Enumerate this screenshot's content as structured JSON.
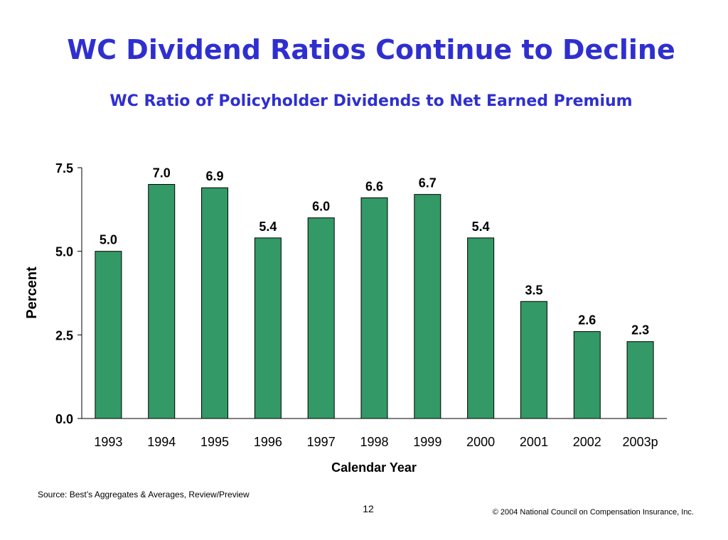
{
  "header": {
    "title": "WC Dividend Ratios Continue to Decline",
    "subtitle": "WC Ratio of Policyholder Dividends to Net Earned Premium"
  },
  "chart_data": {
    "type": "bar",
    "categories": [
      "1993",
      "1994",
      "1995",
      "1996",
      "1997",
      "1998",
      "1999",
      "2000",
      "2001",
      "2002",
      "2003p"
    ],
    "values": [
      5.0,
      7.0,
      6.9,
      5.4,
      6.0,
      6.6,
      6.7,
      5.4,
      3.5,
      2.6,
      2.3
    ],
    "data_labels": [
      "5.0",
      "7.0",
      "6.9",
      "5.4",
      "6.0",
      "6.6",
      "6.7",
      "5.4",
      "3.5",
      "2.6",
      "2.3"
    ],
    "xlabel": "Calendar Year",
    "ylabel": "Percent",
    "ylim": [
      0,
      7.5
    ],
    "yticks": [
      "0.0",
      "2.5",
      "5.0",
      "7.5"
    ],
    "ytick_values": [
      0,
      2.5,
      5.0,
      7.5
    ],
    "grid": false,
    "bar_color": "#339966"
  },
  "footer": {
    "source": "Source: Best’s Aggregates & Averages, Review/Preview",
    "page_number": "12",
    "copyright": "© 2004 National Council on Compensation Insurance, Inc."
  }
}
